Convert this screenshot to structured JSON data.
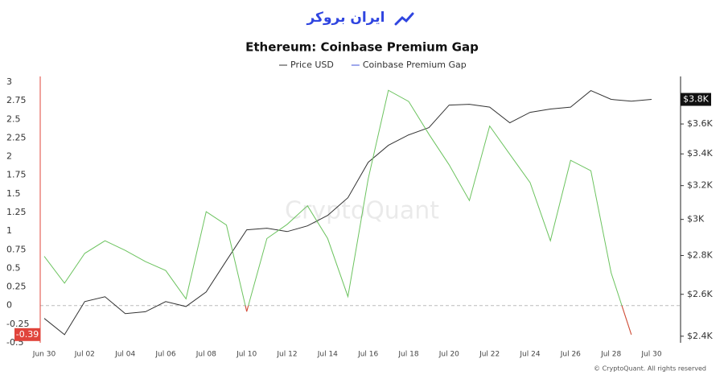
{
  "brand": "ایران بروکر",
  "watermark": "CryptoQuant",
  "footer": "© CryptoQuant. All rights reserved",
  "chart_data": {
    "type": "line",
    "title": "Ethereum: Coinbase Premium Gap",
    "categories": [
      "Jun 30",
      null,
      "Jul 02",
      null,
      "Jul 04",
      null,
      "Jul 06",
      null,
      "Jul 08",
      null,
      "Jul 10",
      null,
      "Jul 12",
      null,
      "Jul 14",
      null,
      "Jul 16",
      null,
      "Jul 18",
      null,
      "Jul 20",
      null,
      "Jul 22",
      null,
      "Jul 24",
      null,
      "Jul 26",
      null,
      "Jul 28",
      null,
      "Jul 30"
    ],
    "ylim": [
      -0.5,
      3
    ],
    "yticks": [
      3,
      2.75,
      2.5,
      2.25,
      2,
      1.75,
      1.5,
      1.25,
      1,
      0.75,
      0.5,
      0.25,
      0,
      -0.25,
      -0.5
    ],
    "y2lim": [
      2370,
      3900
    ],
    "y2_log": true,
    "y2ticks": [
      {
        "value": 3600,
        "label": "$3.6K"
      },
      {
        "value": 3400,
        "label": "$3.4K"
      },
      {
        "value": 3200,
        "label": "$3.2K"
      },
      {
        "value": 3000,
        "label": "$3K"
      },
      {
        "value": 2800,
        "label": "$2.8K"
      },
      {
        "value": 2600,
        "label": "$2.6K"
      },
      {
        "value": 2400,
        "label": "$2.4K"
      }
    ],
    "legend": "top",
    "series": [
      {
        "name": "Price USD",
        "color": "#333333",
        "axis": "y2",
        "last_value_label": "$3.8K",
        "values": [
          2483,
          2407,
          2564,
          2588,
          2506,
          2515,
          2564,
          2540,
          2612,
          2773,
          2941,
          2950,
          2931,
          2963,
          3023,
          3127,
          3346,
          3456,
          3526,
          3575,
          3732,
          3738,
          3718,
          3608,
          3681,
          3704,
          3718,
          3837,
          3773,
          3760,
          3773
        ]
      },
      {
        "name": "Coinbase Premium Gap",
        "color": "#6cc35f",
        "negative_color": "#e0443b",
        "legend_color": "#3f51d8",
        "values": [
          0.66,
          0.3,
          0.7,
          0.87,
          0.74,
          0.59,
          0.47,
          0.09,
          1.26,
          1.08,
          -0.08,
          0.9,
          1.09,
          1.34,
          0.9,
          0.12,
          1.7,
          2.89,
          2.74,
          2.3,
          1.89,
          1.41,
          2.41,
          2.03,
          1.65,
          0.87,
          1.95,
          1.81,
          0.44,
          -0.39,
          null
        ]
      }
    ]
  }
}
